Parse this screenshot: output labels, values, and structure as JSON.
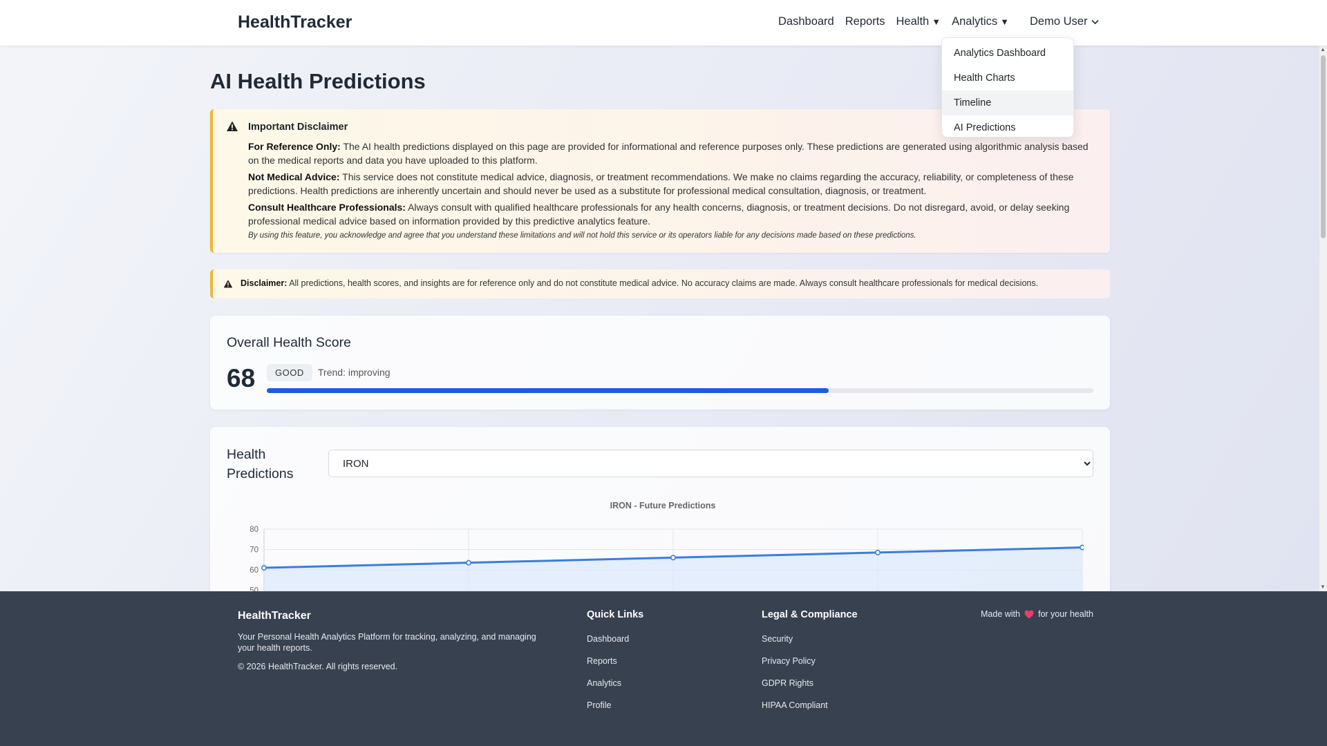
{
  "navbar": {
    "brand": "HealthTracker",
    "links": {
      "dashboard": "Dashboard",
      "reports": "Reports",
      "health": "Health",
      "analytics": "Analytics"
    },
    "user": "Demo User",
    "analytics_menu": [
      "Analytics Dashboard",
      "Health Charts",
      "Timeline",
      "AI Predictions"
    ]
  },
  "page": {
    "title": "AI Health Predictions"
  },
  "disclaimer": {
    "title": "Important Disclaimer",
    "p1_label": "For Reference Only:",
    "p1_text": " The AI health predictions displayed on this page are provided for informational and reference purposes only. These predictions are generated using algorithmic analysis based on the medical reports and data you have uploaded to this platform.",
    "p2_label": "Not Medical Advice:",
    "p2_text": " This service does not constitute medical advice, diagnosis, or treatment recommendations. We make no claims regarding the accuracy, reliability, or completeness of these predictions. Health predictions are inherently uncertain and should never be used as a substitute for professional medical consultation, diagnosis, or treatment.",
    "p3_label": "Consult Healthcare Professionals:",
    "p3_text": " Always consult with qualified healthcare professionals for any health concerns, diagnosis, or treatment decisions. Do not disregard, avoid, or delay seeking professional medical advice based on information provided by this predictive analytics feature.",
    "acknowledge": "By using this feature, you acknowledge and agree that you understand these limitations and will not hold this service or its operators liable for any decisions made based on these predictions."
  },
  "disclaimer_small": {
    "label": "Disclaimer:",
    "text": " All predictions, health scores, and insights are for reference only and do not constitute medical advice. No accuracy claims are made. Always consult healthcare professionals for medical decisions."
  },
  "score": {
    "title": "Overall Health Score",
    "value": "68",
    "badge": "GOOD",
    "trend": "Trend: improving",
    "progress_fraction": 0.68
  },
  "predictions": {
    "title": "Health Predictions",
    "selected": "IRON"
  },
  "chart_data": {
    "type": "line",
    "title": "IRON - Future Predictions",
    "y_ticks": [
      "80",
      "70",
      "60",
      "50"
    ],
    "ylim": [
      40,
      80
    ],
    "x_points": 5,
    "series": [
      {
        "values": [
          61,
          63.5,
          66,
          68.5,
          71
        ]
      }
    ],
    "grid": true,
    "line_color": "#3b7ddd",
    "fill_color": "#dce8fb"
  },
  "footer": {
    "brand": "HealthTracker",
    "description": "Your Personal Health Analytics Platform for tracking, analyzing, and managing your health reports.",
    "copyright": "© 2026 HealthTracker. All rights reserved.",
    "quick_links_title": "Quick Links",
    "quick_links": [
      "Dashboard",
      "Reports",
      "Analytics",
      "Profile"
    ],
    "legal_title": "Legal & Compliance",
    "legal_links": [
      "Security",
      "Privacy Policy",
      "GDPR Rights",
      "HIPAA Compliant"
    ],
    "made_with_prefix": "Made with",
    "made_with_suffix": "for your health"
  },
  "colors": {
    "accent": "#1a5de0",
    "warning": "#f0b532",
    "footer_bg": "#384150",
    "heart": "#e83e6c"
  }
}
